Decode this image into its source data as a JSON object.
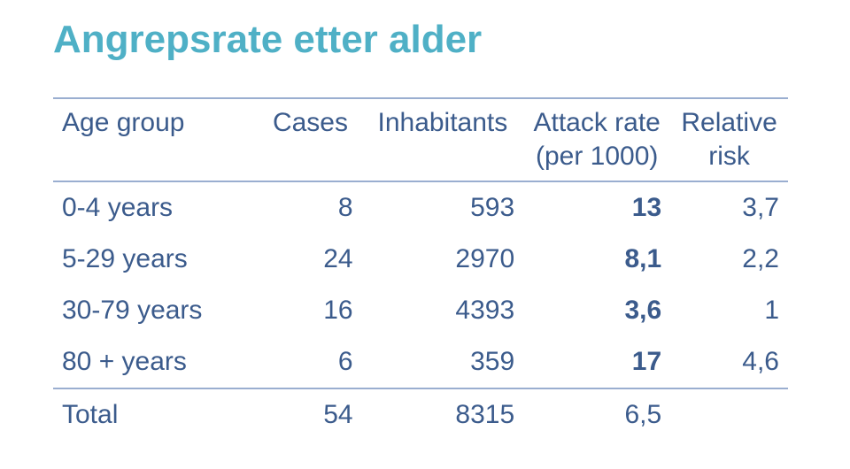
{
  "title": "Angrepsrate etter alder",
  "colors": {
    "title": "#4fb0c6",
    "text": "#3b5b8c",
    "rule": "#9aaed0",
    "background": "#ffffff"
  },
  "typography": {
    "title_fontsize_pt": 33,
    "body_fontsize_pt": 22,
    "font_family": "Arial"
  },
  "table": {
    "type": "table",
    "columns": [
      {
        "key": "age_group",
        "label": "Age group",
        "sublabel": "",
        "align": "left",
        "width_pct": 28
      },
      {
        "key": "cases",
        "label": "Cases",
        "sublabel": "",
        "align": "right",
        "width_pct": 14
      },
      {
        "key": "inhabitants",
        "label": "Inhabitants",
        "sublabel": "",
        "align": "right",
        "width_pct": 22
      },
      {
        "key": "attack_rate",
        "label": "Attack rate",
        "sublabel": "(per 1000)",
        "align": "right",
        "width_pct": 20,
        "bold": true
      },
      {
        "key": "relative",
        "label": "Relative",
        "sublabel": "risk",
        "align": "right",
        "width_pct": 16
      }
    ],
    "rows": [
      {
        "age_group": "0-4 years",
        "cases": "8",
        "inhabitants": "593",
        "attack_rate": "13",
        "relative": "3,7"
      },
      {
        "age_group": "5-29 years",
        "cases": "24",
        "inhabitants": "2970",
        "attack_rate": "8,1",
        "relative": "2,2"
      },
      {
        "age_group": "30-79 years",
        "cases": "16",
        "inhabitants": "4393",
        "attack_rate": "3,6",
        "relative": "1"
      },
      {
        "age_group": "80 + years",
        "cases": "6",
        "inhabitants": "359",
        "attack_rate": "17",
        "relative": "4,6"
      }
    ],
    "total": {
      "age_group": "Total",
      "cases": "54",
      "inhabitants": "8315",
      "attack_rate": "6,5",
      "relative": ""
    }
  }
}
